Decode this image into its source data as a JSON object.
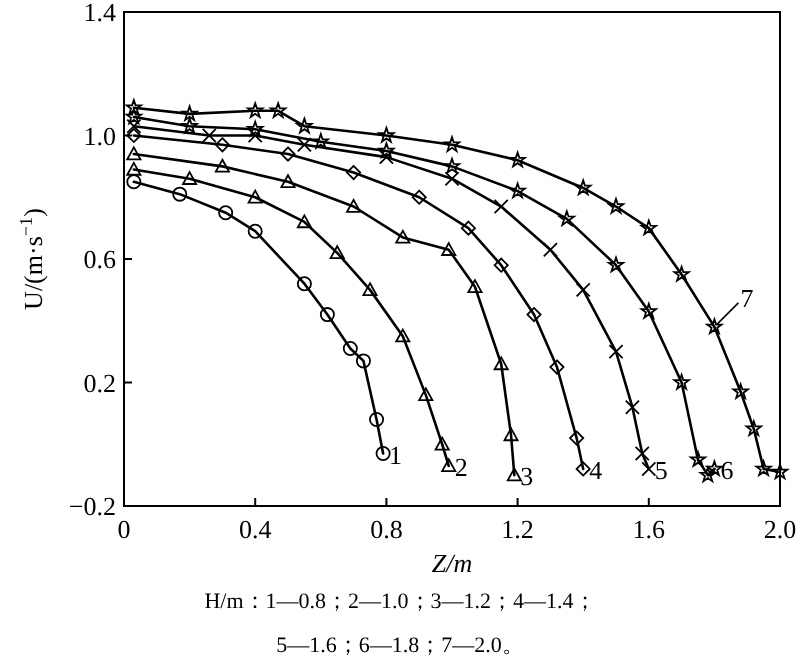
{
  "chart_data": {
    "type": "line",
    "xlabel": "Z/m",
    "ylabel": "U/(m·s$^{−1}$)",
    "xlim": [
      0,
      2.0
    ],
    "ylim": [
      -0.2,
      1.4
    ],
    "xticks": [
      {
        "value": 0,
        "label": "0"
      },
      0.4,
      0.8,
      1.2,
      1.6,
      {
        "value": 2.0,
        "label": "2.0"
      }
    ],
    "yticks": [
      {
        "value": -0.2,
        "label": "−0.2"
      },
      0.2,
      0.6,
      {
        "value": 1.0,
        "label": "1.0"
      },
      1.4
    ],
    "grid": false,
    "line_style": "solid",
    "series": [
      {
        "color": "#000000",
        "marker": "circle",
        "x": [
          0.03,
          0.17,
          0.31,
          0.4,
          0.55,
          0.62,
          0.69,
          0.73,
          0.77,
          0.79
        ],
        "values": [
          0.85,
          0.81,
          0.75,
          0.69,
          0.52,
          0.42,
          0.31,
          0.27,
          0.08,
          -0.03
        ]
      },
      {
        "color": "#000000",
        "marker": "triangle",
        "x": [
          0.03,
          0.2,
          0.4,
          0.55,
          0.65,
          0.75,
          0.85,
          0.92,
          0.97,
          0.99
        ],
        "values": [
          0.89,
          0.86,
          0.8,
          0.72,
          0.62,
          0.5,
          0.35,
          0.16,
          0.0,
          -0.07
        ]
      },
      {
        "color": "#000000",
        "marker": "triangle",
        "x": [
          0.03,
          0.3,
          0.5,
          0.7,
          0.85,
          0.99,
          1.07,
          1.15,
          1.18,
          1.19
        ],
        "values": [
          0.94,
          0.9,
          0.85,
          0.77,
          0.67,
          0.63,
          0.51,
          0.26,
          0.03,
          -0.1
        ]
      },
      {
        "color": "#000000",
        "marker": "diamond",
        "x": [
          0.03,
          0.3,
          0.5,
          0.7,
          0.9,
          1.05,
          1.15,
          1.25,
          1.32,
          1.38,
          1.4
        ],
        "values": [
          1.0,
          0.97,
          0.94,
          0.88,
          0.8,
          0.7,
          0.58,
          0.42,
          0.25,
          0.02,
          -0.08
        ]
      },
      {
        "color": "#000000",
        "marker": "cross",
        "x": [
          0.03,
          0.26,
          0.4,
          0.55,
          0.8,
          1.0,
          1.15,
          1.3,
          1.4,
          1.5,
          1.55,
          1.58,
          1.6
        ],
        "values": [
          1.03,
          1.0,
          1.0,
          0.97,
          0.93,
          0.86,
          0.77,
          0.63,
          0.5,
          0.3,
          0.12,
          -0.03,
          -0.08
        ]
      },
      {
        "color": "#000000",
        "marker": "star",
        "x": [
          0.03,
          0.2,
          0.4,
          0.6,
          0.8,
          1.0,
          1.2,
          1.35,
          1.5,
          1.6,
          1.7,
          1.75,
          1.78,
          1.8
        ],
        "values": [
          1.06,
          1.03,
          1.02,
          0.98,
          0.95,
          0.9,
          0.82,
          0.73,
          0.58,
          0.43,
          0.2,
          -0.05,
          -0.1,
          -0.08
        ]
      },
      {
        "color": "#000000",
        "marker": "star",
        "x": [
          0.03,
          0.2,
          0.4,
          0.47,
          0.55,
          0.8,
          1.0,
          1.2,
          1.4,
          1.5,
          1.6,
          1.7,
          1.8,
          1.88,
          1.92,
          1.95,
          2.0
        ],
        "values": [
          1.09,
          1.07,
          1.08,
          1.08,
          1.03,
          1.0,
          0.97,
          0.92,
          0.83,
          0.77,
          0.7,
          0.55,
          0.38,
          0.17,
          0.05,
          -0.08,
          -0.09
        ]
      }
    ],
    "annotations": [
      {
        "text": "1",
        "x": 0.79,
        "y": -0.03
      },
      {
        "text": "2",
        "x": 0.99,
        "y": -0.07
      },
      {
        "text": "3",
        "x": 1.19,
        "y": -0.1
      },
      {
        "text": "4",
        "x": 1.4,
        "y": -0.08
      },
      {
        "text": "5",
        "x": 1.6,
        "y": -0.08
      },
      {
        "text": "6",
        "x": 1.8,
        "y": -0.08
      },
      {
        "text": "7",
        "x": 1.8,
        "y": 0.38
      },
      "H/m：1—0.8；2—1.0；3—1.2；4—1.4；",
      "5—1.6；6—1.8；7—2.0。"
    ]
  }
}
